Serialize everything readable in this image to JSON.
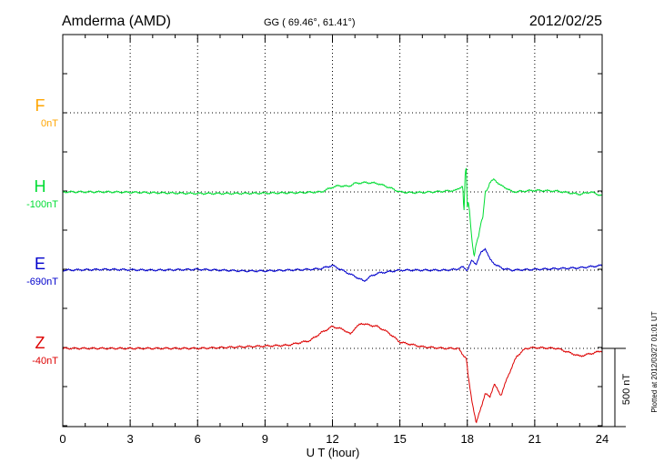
{
  "header": {
    "station": "Amderma (AMD)",
    "coords": "GG ( 69.46°,  61.41°)",
    "date": "2012/02/25"
  },
  "plotted_note": "Plotted at 2012/03/27 01:01 UT",
  "scale_label": "500 nT",
  "colors": {
    "F": "#ffa500",
    "H": "#00dd33",
    "E": "#0000cc",
    "Z": "#dd0000"
  },
  "chart_data": {
    "type": "line",
    "xlabel": "U T (hour)",
    "xlim": [
      0,
      24
    ],
    "xticks": [
      "0",
      "3",
      "6",
      "9",
      "12",
      "15",
      "18",
      "21",
      "24"
    ],
    "scale_nT": 500,
    "series": [
      {
        "name": "F",
        "baseline_label": "0nT",
        "values": []
      },
      {
        "name": "H",
        "baseline_label": "-100nT",
        "x": [
          0,
          2,
          4,
          6,
          7.5,
          9,
          10.5,
          11.5,
          12,
          12.3,
          12.7,
          13,
          13.5,
          14,
          14.5,
          15,
          15.5,
          16,
          16.5,
          17,
          17.5,
          17.8,
          17.85,
          17.9,
          17.95,
          18.0,
          18.05,
          18.1,
          18.2,
          18.3,
          18.4,
          18.5,
          18.6,
          18.7,
          18.8,
          18.9,
          19.0,
          19.2,
          19.5,
          19.8,
          20,
          21,
          22,
          23,
          23.5,
          24
        ],
        "values": [
          0,
          0,
          -5,
          -10,
          -10,
          -8,
          -5,
          0,
          30,
          40,
          35,
          55,
          60,
          55,
          30,
          0,
          -5,
          -3,
          0,
          5,
          10,
          40,
          -150,
          100,
          160,
          -100,
          -60,
          -120,
          -300,
          -420,
          -330,
          -280,
          -200,
          -160,
          0,
          20,
          60,
          80,
          40,
          20,
          0,
          10,
          5,
          -15,
          0,
          -25
        ]
      },
      {
        "name": "E",
        "baseline_label": "-690nT",
        "x": [
          0,
          2,
          4,
          6,
          8,
          9,
          10,
          11,
          11.5,
          12,
          12.5,
          13,
          13.4,
          13.7,
          14,
          14.5,
          15,
          16,
          17,
          17.5,
          17.8,
          18.0,
          18.2,
          18.4,
          18.6,
          18.8,
          19.0,
          19.3,
          19.6,
          20,
          21,
          22,
          23,
          24
        ],
        "values": [
          0,
          5,
          0,
          5,
          -5,
          -5,
          0,
          5,
          10,
          30,
          -5,
          -40,
          -70,
          -40,
          -20,
          -10,
          0,
          0,
          0,
          5,
          20,
          0,
          60,
          40,
          110,
          140,
          70,
          30,
          10,
          0,
          5,
          10,
          15,
          30
        ]
      },
      {
        "name": "Z",
        "baseline_label": "-40nT",
        "x": [
          0,
          3,
          6,
          8,
          10,
          11,
          11.5,
          12,
          12.5,
          12.8,
          13,
          13.3,
          13.6,
          14,
          14.5,
          15,
          16,
          17,
          17.6,
          17.8,
          17.95,
          18.05,
          18.2,
          18.4,
          18.6,
          18.8,
          19.0,
          19.2,
          19.5,
          19.8,
          20.2,
          20.6,
          21,
          22,
          23,
          23.6,
          24
        ],
        "values": [
          0,
          0,
          0,
          10,
          20,
          50,
          100,
          140,
          120,
          90,
          130,
          160,
          150,
          140,
          100,
          40,
          10,
          0,
          0,
          -40,
          -60,
          -190,
          -330,
          -480,
          -380,
          -290,
          -310,
          -230,
          -300,
          -180,
          -50,
          0,
          5,
          0,
          -50,
          -30,
          -15
        ]
      }
    ]
  }
}
